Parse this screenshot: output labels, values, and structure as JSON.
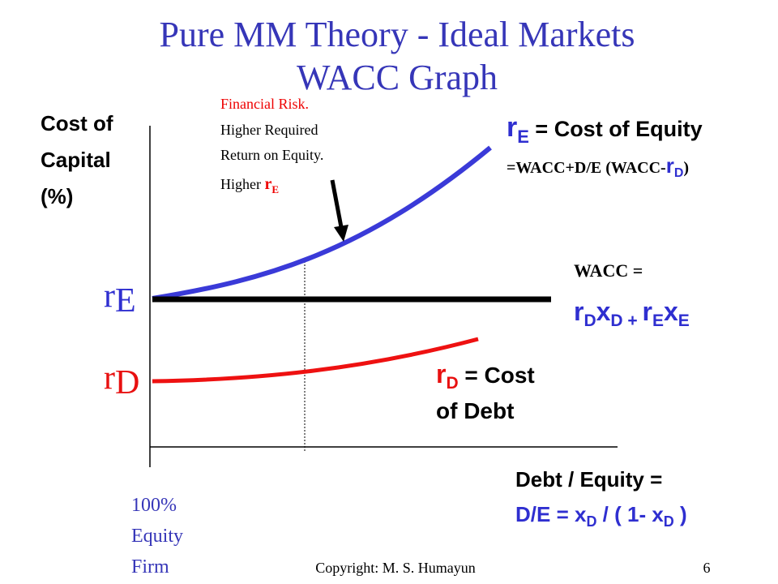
{
  "title": [
    "Pure MM Theory - Ideal Markets",
    "WACC Graph"
  ],
  "y_axis_label": [
    "Cost of",
    "Capital",
    "(%)"
  ],
  "annotation": {
    "lines": [
      "Financial Risk.",
      "Higher Required",
      "Return on Equity."
    ],
    "last_line": [
      "Higher ",
      "r",
      "E"
    ]
  },
  "equity_label": [
    "r",
    "E",
    " = Cost of Equity"
  ],
  "equity_formula": [
    "=WACC+D/E (WACC-",
    "r",
    "D",
    ")"
  ],
  "wacc_label": "WACC =",
  "wacc_formula": [
    "r",
    "D",
    "x",
    "D",
    " + ",
    "r",
    "E",
    "x",
    "E"
  ],
  "left_labels": {
    "equity": [
      "r",
      "E"
    ],
    "debt": [
      "r",
      "D"
    ]
  },
  "debt_label": [
    [
      "r",
      "D",
      " = Cost"
    ],
    "of Debt"
  ],
  "x_axis_label": {
    "line1": "Debt / Equity  =",
    "line2": [
      "D/E = x",
      "D",
      " / ( 1- x",
      "D",
      " )"
    ]
  },
  "origin_note": [
    "100%",
    "Equity",
    "Firm"
  ],
  "footer": {
    "copyright": "Copyright: M. S. Humayun",
    "page": "6"
  }
}
